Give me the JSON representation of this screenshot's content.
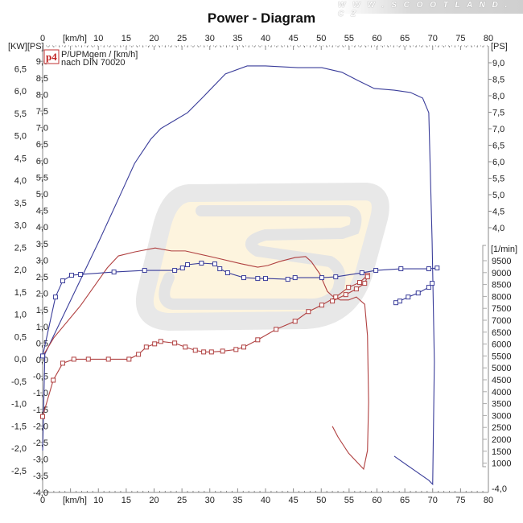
{
  "watermark": "W W W . S C O O T L A N D . C Z",
  "chart_data": {
    "type": "line",
    "title": "Power - Diagram",
    "legend": {
      "badge": "p4",
      "line1": "P/UPMgem / [km/h]",
      "line2": "nach DIN 70020",
      "placement": "top-left"
    },
    "xlabel": "[km/h]",
    "xlim": [
      0,
      80
    ],
    "x_ticks": [
      "0",
      "10",
      "15",
      "20",
      "25",
      "30",
      "35",
      "40",
      "45",
      "50",
      "55",
      "60",
      "65",
      "70",
      "75",
      "80"
    ],
    "left_axis_units": "[KW][PS]",
    "kw_ticks": [
      "6,5",
      "6,0",
      "5,5",
      "5,0",
      "4,5",
      "4,0",
      "3,5",
      "3,0",
      "2,5",
      "2,0",
      "1,5",
      "1,0",
      "0,5",
      "0,0",
      "-0,5",
      "-1,0",
      "-1,5",
      "-2,0",
      "-2,5"
    ],
    "ps_ticks": [
      "9,0",
      "8,5",
      "8,0",
      "7,5",
      "7,0",
      "6,5",
      "6,0",
      "5,5",
      "5,0",
      "4,5",
      "4,0",
      "3,5",
      "3,0",
      "2,5",
      "2,0",
      "1,5",
      "1,0",
      "0,5",
      "0,0",
      "-0,5",
      "-1,0",
      "-1,5",
      "-2,0",
      "-2,5",
      "-3,0",
      "-3,5",
      "-4,0"
    ],
    "ps_ylim": [
      -4.0,
      9.0
    ],
    "right_axis_units": "[PS]",
    "right_ps_ticks": [
      "9,0",
      "8,5",
      "8,0",
      "7,5",
      "7,0",
      "6,5",
      "6,0",
      "5,5",
      "5,0",
      "4,5",
      "4,0"
    ],
    "right_bottom_tick": "-4,0",
    "rpm_axis_units": "[1/min]",
    "rpm_ticks": [
      "9500",
      "9000",
      "8500",
      "8000",
      "7500",
      "7000",
      "6500",
      "6000",
      "5500",
      "5000",
      "4500",
      "4000",
      "3500",
      "3000",
      "2500",
      "2000",
      "1500",
      "1000"
    ],
    "rpm_ylim": [
      1000,
      9500
    ],
    "grid": false,
    "colors": {
      "power": "#3a3d9a",
      "torque": "#b04040",
      "axis": "#888888"
    },
    "series": [
      {
        "axis": "ps",
        "color": "#3a3d9a",
        "markers": false,
        "points": [
          [
            0,
            -2.74
          ],
          [
            0.4,
            0.17
          ],
          [
            10.1,
            3.57
          ],
          [
            13.6,
            4.85
          ],
          [
            16.5,
            5.92
          ],
          [
            19.4,
            6.65
          ],
          [
            21.2,
            6.97
          ],
          [
            23.1,
            7.16
          ],
          [
            26.0,
            7.45
          ],
          [
            28.9,
            7.94
          ],
          [
            32.8,
            8.62
          ],
          [
            36.7,
            8.86
          ],
          [
            40.0,
            8.86
          ],
          [
            45.8,
            8.81
          ],
          [
            50.1,
            8.81
          ],
          [
            53.7,
            8.67
          ],
          [
            56.6,
            8.42
          ],
          [
            59.5,
            8.18
          ],
          [
            63.1,
            8.13
          ],
          [
            66.0,
            8.06
          ],
          [
            68.2,
            7.89
          ],
          [
            69.3,
            7.45
          ],
          [
            69.9,
            3.57
          ],
          [
            70.3,
            -0.07
          ],
          [
            70.0,
            -3.76
          ],
          [
            69.3,
            -3.64
          ],
          [
            66.4,
            -3.3
          ],
          [
            63.1,
            -2.91
          ]
        ]
      },
      {
        "axis": "ps",
        "color": "#b04040",
        "markers": false,
        "points": [
          [
            0,
            0.1
          ],
          [
            2.0,
            0.66
          ],
          [
            6.8,
            1.63
          ],
          [
            11.6,
            2.77
          ],
          [
            13.6,
            3.13
          ],
          [
            16.5,
            3.25
          ],
          [
            20.2,
            3.37
          ],
          [
            23.1,
            3.28
          ],
          [
            25.6,
            3.28
          ],
          [
            30.9,
            3.08
          ],
          [
            35.7,
            2.89
          ],
          [
            38.6,
            2.79
          ],
          [
            40.4,
            2.84
          ],
          [
            42.5,
            2.96
          ],
          [
            45.3,
            3.08
          ],
          [
            47.2,
            3.11
          ],
          [
            48.2,
            2.96
          ],
          [
            49.7,
            2.6
          ],
          [
            51.1,
            2.06
          ],
          [
            52.0,
            1.92
          ],
          [
            53.4,
            1.8
          ],
          [
            54.9,
            1.8
          ],
          [
            56.3,
            1.89
          ],
          [
            57.8,
            1.67
          ],
          [
            58.3,
            0.73
          ],
          [
            58.5,
            -1.29
          ],
          [
            58.3,
            -2.74
          ],
          [
            57.6,
            -3.3
          ],
          [
            54.9,
            -2.82
          ],
          [
            53.0,
            -2.33
          ],
          [
            52.0,
            -2.01
          ]
        ]
      },
      {
        "axis": "rpm",
        "color": "#3a3d9a",
        "markers": true,
        "points": [
          [
            0,
            5500
          ],
          [
            2.3,
            7975
          ],
          [
            3.6,
            8653
          ],
          [
            5.2,
            8890
          ],
          [
            6.8,
            8924
          ],
          [
            12.8,
            9025
          ],
          [
            18.3,
            9093
          ],
          [
            23.7,
            9093
          ],
          [
            25.1,
            9195
          ],
          [
            26.0,
            9331
          ],
          [
            28.5,
            9398
          ],
          [
            30.9,
            9364
          ],
          [
            31.8,
            9161
          ],
          [
            33.2,
            8992
          ],
          [
            36.1,
            8788
          ],
          [
            38.6,
            8754
          ],
          [
            40.0,
            8754
          ],
          [
            44.0,
            8720
          ],
          [
            45.3,
            8788
          ],
          [
            50.1,
            8788
          ],
          [
            52.6,
            8822
          ],
          [
            57.3,
            8992
          ],
          [
            59.8,
            9093
          ],
          [
            64.3,
            9161
          ],
          [
            69.3,
            9161
          ],
          [
            70.8,
            9195
          ]
        ]
      },
      {
        "axis": "rpm",
        "color": "#3a3d9a",
        "markers": true,
        "points": [
          [
            63.4,
            7737
          ],
          [
            64.1,
            7805
          ],
          [
            65.6,
            7975
          ],
          [
            67.4,
            8144
          ],
          [
            69.3,
            8381
          ],
          [
            69.9,
            8551
          ]
        ]
      },
      {
        "axis": "rpm",
        "color": "#b04040",
        "markers": true,
        "points": [
          [
            0,
            2958
          ],
          [
            1.9,
            4483
          ],
          [
            3.6,
            5195
          ],
          [
            5.6,
            5364
          ],
          [
            8.2,
            5364
          ],
          [
            11.8,
            5364
          ],
          [
            15.5,
            5364
          ],
          [
            17.2,
            5568
          ],
          [
            18.6,
            5873
          ],
          [
            20.1,
            6008
          ],
          [
            21.2,
            6110
          ],
          [
            23.7,
            6042
          ],
          [
            25.6,
            5873
          ],
          [
            27.4,
            5737
          ],
          [
            28.9,
            5669
          ],
          [
            30.3,
            5669
          ],
          [
            32.3,
            5703
          ],
          [
            34.7,
            5771
          ],
          [
            36.1,
            5873
          ],
          [
            38.6,
            6178
          ],
          [
            41.9,
            6619
          ],
          [
            45.3,
            6958
          ],
          [
            47.7,
            7364
          ],
          [
            50.1,
            7636
          ],
          [
            52.6,
            7975
          ],
          [
            54.9,
            8381
          ],
          [
            56.9,
            8585
          ],
          [
            58.3,
            8890
          ]
        ]
      },
      {
        "axis": "rpm",
        "color": "#b04040",
        "markers": true,
        "points": [
          [
            52.0,
            7805
          ],
          [
            54.4,
            8076
          ],
          [
            56.3,
            8314
          ],
          [
            57.8,
            8551
          ],
          [
            58.3,
            8822
          ]
        ]
      }
    ]
  }
}
